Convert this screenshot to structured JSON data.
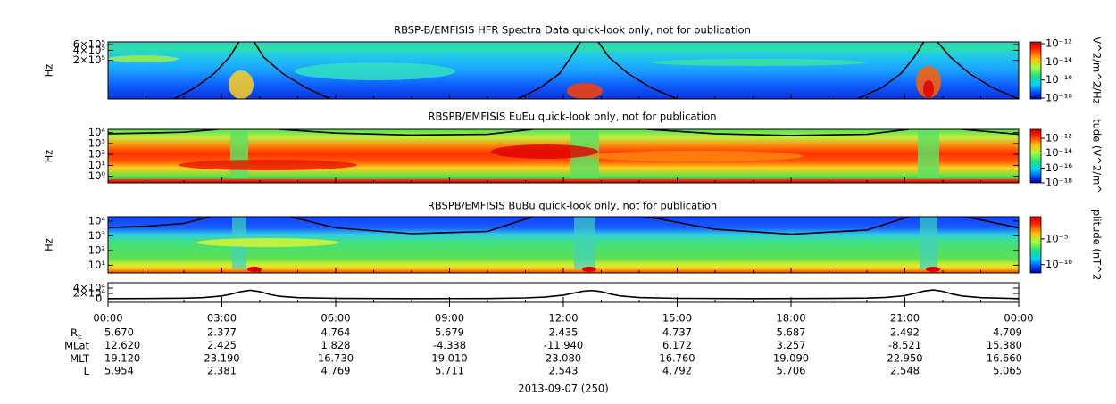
{
  "chart_data": [
    {
      "type": "spectrogram",
      "title": "RBSP-B/EMFISIS  HFR Spectra Data quick-look only, not for publication",
      "ylabel": "Hz",
      "ylog": true,
      "ylim": [
        13500,
        720000
      ],
      "yticks": [
        {
          "value": 600000,
          "label": "6×10⁵"
        },
        {
          "value": 400000,
          "label": "4×10⁵"
        },
        {
          "value": 200000,
          "label": "2×10⁵"
        }
      ],
      "xlim": [
        0,
        24
      ],
      "clabel": "V^2/m^2/Hz",
      "clog": true,
      "clim": [
        8e-19,
        1.6e-12
      ],
      "cticks": [
        {
          "value": 1e-12,
          "label": "10⁻¹²"
        },
        {
          "value": 1e-14,
          "label": "10⁻¹⁴"
        },
        {
          "value": 1e-16,
          "label": "10⁻¹⁶"
        },
        {
          "value": 1e-18,
          "label": "10⁻¹⁸"
        }
      ],
      "lines": [
        {
          "color": "#000000",
          "x": [
            1.74,
            2.3,
            2.8,
            3.2,
            3.45,
            null,
            3.85,
            4.1,
            4.6,
            5.2,
            5.86,
            null,
            10.8,
            11.4,
            11.9,
            12.2,
            12.45,
            null,
            12.92,
            13.2,
            13.7,
            14.3,
            15.0,
            null,
            19.74,
            20.4,
            20.9,
            21.25,
            21.5,
            null,
            21.86,
            22.2,
            22.7,
            23.3,
            24
          ],
          "values": [
            13500,
            30000,
            80000,
            250000,
            720000,
            null,
            720000,
            250000,
            80000,
            30000,
            13500,
            null,
            13500,
            30000,
            80000,
            250000,
            720000,
            null,
            720000,
            250000,
            80000,
            30000,
            13500,
            null,
            13500,
            30000,
            80000,
            250000,
            720000,
            null,
            720000,
            250000,
            80000,
            30000,
            13500
          ]
        }
      ]
    },
    {
      "type": "spectrogram",
      "title": "RBSPB/EMFISIS  EuEu quick-look only, not for publication",
      "ylabel": "Hz",
      "ylog": true,
      "ylim": [
        0.25,
        20000
      ],
      "yticks": [
        {
          "value": 10000,
          "label": "10⁴"
        },
        {
          "value": 1000,
          "label": "10³"
        },
        {
          "value": 100,
          "label": "10²"
        },
        {
          "value": 10,
          "label": "10¹"
        },
        {
          "value": 1,
          "label": "10⁰"
        }
      ],
      "xlim": [
        0,
        24
      ],
      "clabel": "tude (V^2/m^",
      "clog": true,
      "clim": [
        1e-18,
        1.6e-11
      ],
      "cticks": [
        {
          "value": 1e-12,
          "label": "10⁻¹²"
        },
        {
          "value": 1e-14,
          "label": "10⁻¹⁴"
        },
        {
          "value": 1e-16,
          "label": "10⁻¹⁶"
        },
        {
          "value": 1e-18,
          "label": "10⁻¹⁸"
        }
      ],
      "lines": [
        {
          "color": "#000000",
          "x": [
            0,
            1,
            2,
            2.9,
            null,
            4.5,
            6,
            8,
            10,
            11.2,
            null,
            14.2,
            16,
            18,
            20,
            21.1,
            null,
            22.5,
            24
          ],
          "values": [
            8000,
            9000,
            11000,
            20000,
            null,
            20000,
            9000,
            6000,
            7000,
            20000,
            null,
            20000,
            8000,
            5500,
            7000,
            20000,
            null,
            20000,
            7000
          ]
        }
      ]
    },
    {
      "type": "spectrogram",
      "title": "RBSPB/EMFISIS  BuBu quick-look only, not for publication",
      "ylabel": "Hz",
      "ylog": true,
      "ylim": [
        3,
        20000
      ],
      "yticks": [
        {
          "value": 10000,
          "label": "10⁴"
        },
        {
          "value": 1000,
          "label": "10³"
        },
        {
          "value": 100,
          "label": "10²"
        },
        {
          "value": 10,
          "label": "10¹"
        }
      ],
      "xlim": [
        0,
        24
      ],
      "clabel": "plitude (nT^2",
      "clog": true,
      "clim": [
        2.5e-12,
        0.2
      ],
      "cticks": [
        {
          "value": 1e-05,
          "label": "10⁻⁵"
        },
        {
          "value": 1e-10,
          "label": "10⁻¹⁰"
        }
      ],
      "lines": [
        {
          "color": "#000000",
          "x": [
            0,
            1,
            2,
            2.7,
            null,
            4.8,
            6,
            8,
            10,
            11.2,
            null,
            14.2,
            16,
            18,
            20,
            21.1,
            null,
            22.6,
            24
          ],
          "values": [
            3700,
            4500,
            7000,
            20000,
            null,
            20000,
            3500,
            1400,
            2000,
            20000,
            null,
            20000,
            2800,
            1300,
            2500,
            20000,
            null,
            20000,
            3500
          ]
        }
      ]
    },
    {
      "type": "line",
      "ylim": [
        -13000,
        60000
      ],
      "yticks": [
        {
          "value": 40000,
          "label": "4×10⁴"
        },
        {
          "value": 20000,
          "label": "2×10⁴"
        },
        {
          "value": 0,
          "label": "0."
        }
      ],
      "xlim": [
        0,
        24
      ],
      "lines": [
        {
          "color": "#000000",
          "x": [
            0,
            1,
            2,
            2.5,
            3,
            3.25,
            3.5,
            3.75,
            4,
            4.25,
            4.5,
            5,
            6,
            8,
            10,
            11,
            11.5,
            12,
            12.25,
            12.5,
            12.75,
            13,
            13.25,
            13.5,
            14,
            15,
            17,
            19,
            20,
            20.5,
            21,
            21.25,
            21.5,
            21.75,
            22,
            22.25,
            22.5,
            23,
            24
          ],
          "values": [
            900,
            1200,
            2500,
            4500,
            11000,
            18000,
            27000,
            32000,
            27000,
            17000,
            10000,
            4500,
            1800,
            900,
            1400,
            3500,
            6500,
            14000,
            21000,
            28000,
            31000,
            27000,
            18000,
            11000,
            5000,
            2000,
            900,
            1500,
            3000,
            5500,
            12000,
            20000,
            29000,
            33000,
            28000,
            18000,
            11000,
            4500,
            1100
          ]
        }
      ]
    }
  ],
  "time_axis": {
    "xlim": [
      0,
      24
    ],
    "xticks": [
      {
        "value": 0,
        "label": "00:00"
      },
      {
        "value": 3,
        "label": "03:00"
      },
      {
        "value": 6,
        "label": "06:00"
      },
      {
        "value": 9,
        "label": "09:00"
      },
      {
        "value": 12,
        "label": "12:00"
      },
      {
        "value": 15,
        "label": "15:00"
      },
      {
        "value": 18,
        "label": "18:00"
      },
      {
        "value": 21,
        "label": "21:00"
      },
      {
        "value": 24,
        "label": "00:00"
      }
    ]
  },
  "ephemeris": [
    {
      "label": "R",
      "label_sub": "E",
      "values": [
        "5.670",
        "2.377",
        "4.764",
        "5.679",
        "2.435",
        "4.737",
        "5.687",
        "2.492",
        "4.709"
      ]
    },
    {
      "label": "MLat",
      "values": [
        "12.620",
        "2.425",
        "1.828",
        "-4.338",
        "-11.940",
        "6.172",
        "3.257",
        "-8.521",
        "15.380"
      ]
    },
    {
      "label": "MLT",
      "values": [
        "19.120",
        "23.190",
        "16.730",
        "19.010",
        "23.080",
        "16.760",
        "19.090",
        "22.950",
        "16.660"
      ]
    },
    {
      "label": "L",
      "values": [
        "5.954",
        "2.381",
        "4.769",
        "5.711",
        "2.543",
        "4.792",
        "5.706",
        "2.548",
        "5.065"
      ]
    }
  ],
  "date_label": "2013-09-07 (250)"
}
